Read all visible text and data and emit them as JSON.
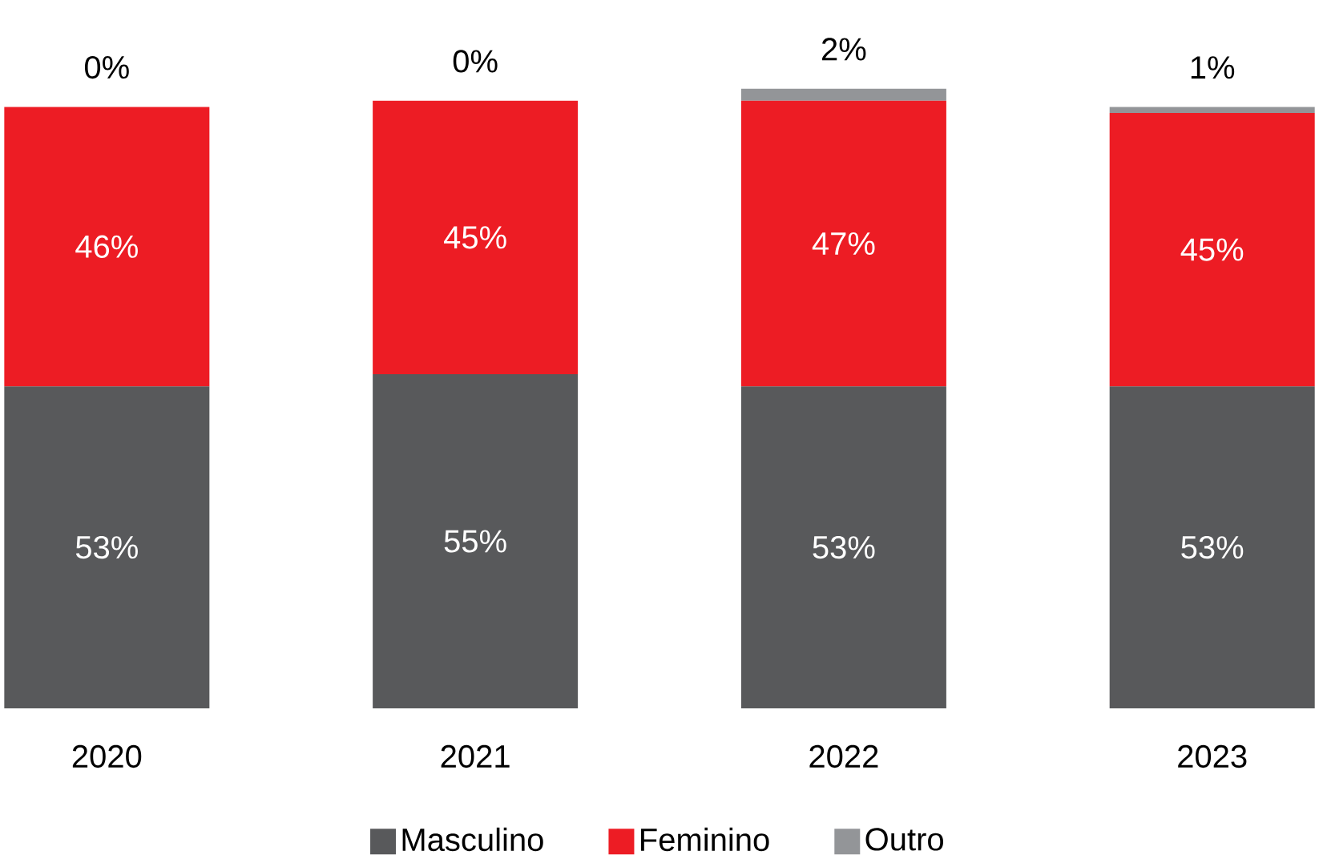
{
  "chart_data": {
    "type": "bar",
    "stacked": true,
    "legend": "bottom",
    "categories": [
      "2020",
      "2021",
      "2022",
      "2023"
    ],
    "series": [
      {
        "name": "Masculino",
        "color": "#58595b",
        "values": [
          53,
          55,
          53,
          53
        ],
        "value_labels": [
          "53%",
          "55%",
          "53%",
          "53%"
        ]
      },
      {
        "name": "Feminino",
        "color": "#ed1c24",
        "values": [
          46,
          45,
          47,
          45
        ],
        "value_labels": [
          "46%",
          "45%",
          "47%",
          "45%"
        ]
      },
      {
        "name": "Outro",
        "color": "#939598",
        "values": [
          0,
          0,
          2,
          1
        ],
        "value_labels": [
          "0%",
          "0%",
          "2%",
          "1%"
        ]
      }
    ]
  }
}
